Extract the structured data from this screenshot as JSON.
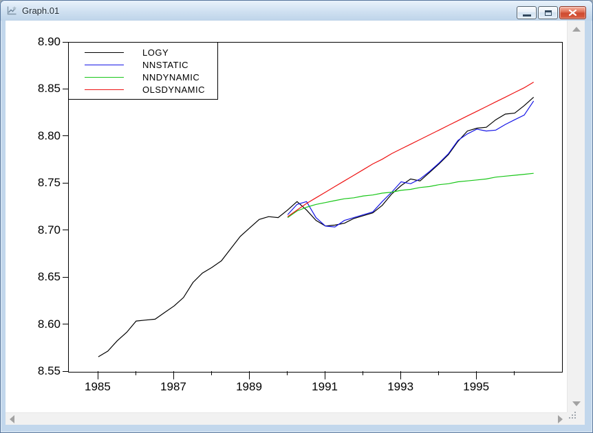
{
  "window": {
    "title": "Graph.01",
    "buttons": {
      "minimize": "minimize",
      "restore": "restore",
      "close": "close"
    }
  },
  "chart_data": {
    "type": "line",
    "title": "",
    "xlabel": "",
    "ylabel": "",
    "frequency_hint": "quarterly",
    "grid": false,
    "legend_position": "top-left",
    "ylim": [
      8.55,
      8.9
    ],
    "xlim": [
      1984.22,
      1997.25
    ],
    "y_ticks": [
      8.9,
      8.85,
      8.8,
      8.75,
      8.7,
      8.65,
      8.6,
      8.55
    ],
    "x_ticks_major": [
      1985,
      1987,
      1989,
      1991,
      1993,
      1995
    ],
    "x_ticks_minor": [
      1986,
      1988,
      1990,
      1992,
      1994,
      1996
    ],
    "x_step": 0.25,
    "series": [
      {
        "name": "LOGY",
        "color": "#000000",
        "x_start": 1985.0,
        "values": [
          8.566,
          8.572,
          8.583,
          8.592,
          8.604,
          8.605,
          8.606,
          8.613,
          8.62,
          8.629,
          8.645,
          8.655,
          8.661,
          8.668,
          8.681,
          8.694,
          8.703,
          8.712,
          8.715,
          8.714,
          8.722,
          8.731,
          8.722,
          8.711,
          8.705,
          8.706,
          8.708,
          8.713,
          8.716,
          8.719,
          8.727,
          8.739,
          8.748,
          8.755,
          8.753,
          8.762,
          8.771,
          8.781,
          8.795,
          8.806,
          8.809,
          8.81,
          8.818,
          8.824,
          8.825,
          8.833,
          8.842
        ]
      },
      {
        "name": "NNSTATIC",
        "color": "#1414e6",
        "x_start": 1990.0,
        "values": [
          8.717,
          8.728,
          8.731,
          8.714,
          8.705,
          8.704,
          8.711,
          8.714,
          8.717,
          8.72,
          8.731,
          8.741,
          8.752,
          8.75,
          8.755,
          8.763,
          8.772,
          8.782,
          8.796,
          8.803,
          8.808,
          8.806,
          8.807,
          8.813,
          8.818,
          8.823,
          8.838
        ]
      },
      {
        "name": "NNDYNAMIC",
        "color": "#17c617",
        "x_start": 1990.0,
        "values": [
          8.714,
          8.721,
          8.725,
          8.728,
          8.73,
          8.732,
          8.734,
          8.735,
          8.737,
          8.738,
          8.74,
          8.741,
          8.743,
          8.744,
          8.746,
          8.747,
          8.749,
          8.75,
          8.752,
          8.753,
          8.754,
          8.755,
          8.757,
          8.758,
          8.759,
          8.76,
          8.761
        ]
      },
      {
        "name": "OLSDYNAMIC",
        "color": "#ee1111",
        "x_start": 1990.0,
        "values": [
          8.715,
          8.722,
          8.729,
          8.735,
          8.741,
          8.747,
          8.753,
          8.759,
          8.765,
          8.771,
          8.776,
          8.782,
          8.787,
          8.792,
          8.797,
          8.802,
          8.807,
          8.812,
          8.817,
          8.822,
          8.827,
          8.832,
          8.837,
          8.842,
          8.847,
          8.852,
          8.858
        ]
      }
    ]
  }
}
